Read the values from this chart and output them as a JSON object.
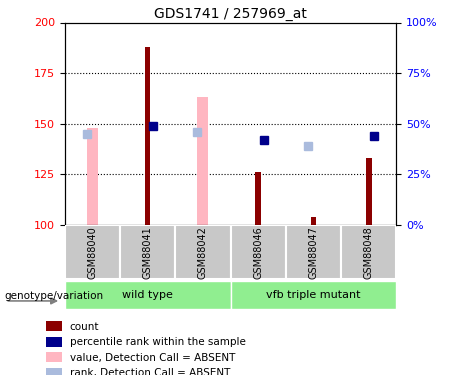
{
  "title": "GDS1741 / 257969_at",
  "samples": [
    "GSM88040",
    "GSM88041",
    "GSM88042",
    "GSM88046",
    "GSM88047",
    "GSM88048"
  ],
  "ylim_left": [
    100,
    200
  ],
  "ylim_right": [
    0,
    100
  ],
  "yticks_left": [
    100,
    125,
    150,
    175,
    200
  ],
  "yticks_right": [
    0,
    25,
    50,
    75,
    100
  ],
  "ytick_labels_right": [
    "0%",
    "25%",
    "50%",
    "75%",
    "100%"
  ],
  "red_bars": {
    "GSM88040": null,
    "GSM88041": 188,
    "GSM88042": null,
    "GSM88046": 126,
    "GSM88047": 104,
    "GSM88048": 133
  },
  "pink_bars": {
    "GSM88040": 148,
    "GSM88041": null,
    "GSM88042": 163,
    "GSM88046": null,
    "GSM88047": null,
    "GSM88048": null
  },
  "blue_squares": {
    "GSM88040": null,
    "GSM88041": 149,
    "GSM88042": null,
    "GSM88046": 142,
    "GSM88047": null,
    "GSM88048": 144
  },
  "light_blue_squares": {
    "GSM88040": 145,
    "GSM88041": null,
    "GSM88042": 146,
    "GSM88046": null,
    "GSM88047": 139,
    "GSM88048": null
  },
  "wild_type_label": "wild type",
  "mutant_label": "vfb triple mutant",
  "genotype_label": "genotype/variation",
  "legend_labels": [
    "count",
    "percentile rank within the sample",
    "value, Detection Call = ABSENT",
    "rank, Detection Call = ABSENT"
  ],
  "colors": {
    "red_bar": "#8B0000",
    "pink_bar": "#FFB6C1",
    "blue_sq": "#00008B",
    "light_blue_sq": "#AABBDD",
    "wild_type_bg": "#90EE90",
    "mutant_bg": "#90EE90",
    "label_bg": "#C8C8C8"
  },
  "title_fontsize": 10,
  "tick_fontsize": 8,
  "label_fontsize": 8,
  "pink_bar_width": 0.2,
  "red_bar_width": 0.1
}
